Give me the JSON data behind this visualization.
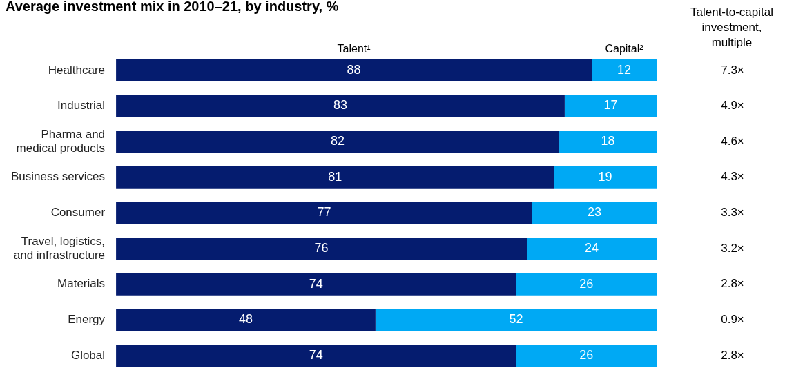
{
  "chart_data": {
    "type": "bar",
    "orientation": "horizontal",
    "stacked": true,
    "data_labels": true,
    "title": "Average investment mix in 2010–21, by industry, %",
    "categories": [
      "Healthcare",
      "Industrial",
      "Pharma and medical products",
      "Business services",
      "Consumer",
      "Travel, logistics, and infrastructure",
      "Materials",
      "Energy",
      "Global"
    ],
    "series": [
      {
        "name": "Talent¹",
        "color": "#051c6f",
        "values": [
          88,
          83,
          82,
          81,
          77,
          76,
          74,
          48,
          74
        ]
      },
      {
        "name": "Capital²",
        "color": "#00a9f4",
        "values": [
          12,
          17,
          18,
          19,
          23,
          24,
          26,
          52,
          26
        ]
      }
    ],
    "annotations": [
      "Talent-to-capital investment, multiple",
      "7.3×",
      "4.9×",
      "4.6×",
      "4.3×",
      "3.3×",
      "3.2×",
      "2.8×",
      "0.9×",
      "2.8×"
    ]
  }
}
